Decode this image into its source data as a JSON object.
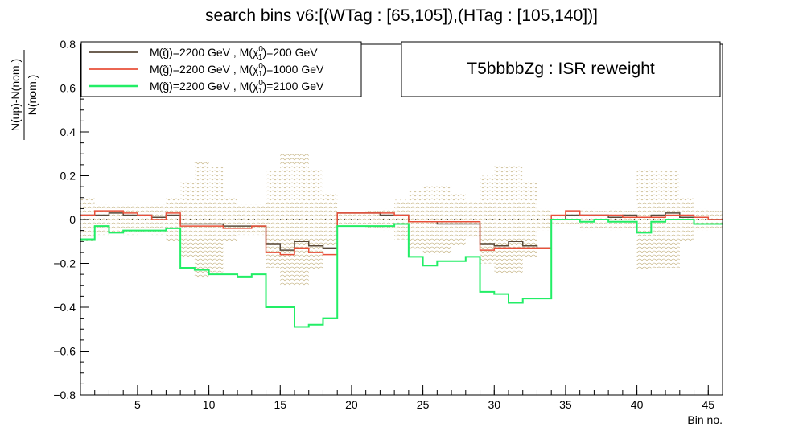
{
  "chart_data": {
    "type": "line",
    "title": "search bins v6:[(WTag : [65,105]),(HTag : [105,140])]",
    "xlabel": "Bin no.",
    "ylabel_num": "N(up)-N(nom.)",
    "ylabel_den": "N(nom.)",
    "xlim": [
      1,
      46
    ],
    "ylim": [
      -0.8,
      0.8
    ],
    "x_ticks": [
      5,
      10,
      15,
      20,
      25,
      30,
      35,
      40,
      45
    ],
    "y_ticks": [
      -0.8,
      -0.6,
      -0.4,
      -0.2,
      0,
      0.2,
      0.4,
      0.6,
      0.8
    ],
    "y_tick_labels": [
      "−0.8",
      "−0.6",
      "−0.4",
      "−0.2",
      "0",
      "0.2",
      "0.4",
      "0.6",
      "0.8"
    ],
    "annotation": "T5bbbbZg : ISR reweight",
    "legend_position": "top-left",
    "series": [
      {
        "name": "M(g̃)=2200 GeV , M(χ₁⁰)=200 GeV",
        "legend_prefix": "M(",
        "legend_mid": "g̃",
        "legend_post": ")=2200 GeV , M(χ",
        "legend_sup": "0",
        "legend_sub": "1",
        "legend_end": ")=200 GeV",
        "color": "#5a4a3a",
        "values": [
          0.02,
          0.02,
          0.03,
          0.02,
          0.02,
          0.01,
          0.02,
          -0.02,
          -0.02,
          -0.02,
          -0.03,
          -0.03,
          -0.03,
          -0.11,
          -0.14,
          -0.1,
          -0.12,
          -0.13,
          0.03,
          0.03,
          0.03,
          0.02,
          0.02,
          -0.01,
          -0.01,
          -0.02,
          -0.02,
          -0.02,
          -0.11,
          -0.12,
          -0.1,
          -0.12,
          -0.13,
          0.0,
          0.02,
          0.02,
          0.02,
          0.01,
          0.02,
          0.01,
          0.02,
          0.03,
          0.01,
          0.01,
          0.0
        ]
      },
      {
        "name": "M(g̃)=2200 GeV , M(χ₁⁰)=1000 GeV",
        "legend_prefix": "M(",
        "legend_mid": "g̃",
        "legend_post": ")=2200 GeV , M(χ",
        "legend_sup": "0",
        "legend_sub": "1",
        "legend_end": ")=1000 GeV",
        "color": "#e8503a",
        "values": [
          0.02,
          0.04,
          0.04,
          0.03,
          0.02,
          0.0,
          0.03,
          -0.03,
          -0.03,
          -0.03,
          -0.04,
          -0.04,
          -0.03,
          -0.15,
          -0.16,
          -0.13,
          -0.15,
          -0.16,
          0.03,
          0.03,
          0.03,
          0.03,
          0.02,
          -0.01,
          -0.01,
          -0.01,
          -0.01,
          -0.01,
          -0.14,
          -0.13,
          -0.13,
          -0.13,
          -0.13,
          0.02,
          0.04,
          0.02,
          0.02,
          0.02,
          0.01,
          0.01,
          0.01,
          0.02,
          0.02,
          0.01,
          0.0
        ]
      },
      {
        "name": "M(g̃)=2200 GeV , M(χ₁⁰)=2100 GeV",
        "legend_prefix": "M(",
        "legend_mid": "g̃",
        "legend_post": ")=2200 GeV , M(χ",
        "legend_sup": "0",
        "legend_sub": "1",
        "legend_end": ")=2100 GeV",
        "color": "#22ee66",
        "values": [
          -0.09,
          -0.03,
          -0.06,
          -0.05,
          -0.05,
          -0.05,
          -0.04,
          -0.22,
          -0.23,
          -0.25,
          -0.25,
          -0.26,
          -0.25,
          -0.4,
          -0.4,
          -0.49,
          -0.48,
          -0.45,
          -0.03,
          -0.03,
          -0.03,
          -0.03,
          -0.02,
          -0.17,
          -0.21,
          -0.19,
          -0.19,
          -0.17,
          -0.33,
          -0.34,
          -0.38,
          -0.36,
          -0.36,
          0.0,
          0.0,
          -0.01,
          0.0,
          -0.01,
          -0.01,
          -0.06,
          -0.01,
          0.0,
          0.0,
          -0.02,
          -0.02
        ]
      }
    ],
    "uncertainty_band": {
      "color": "#c8b88a",
      "values": [
        0.1,
        0.07,
        0.06,
        0.07,
        0.06,
        0.07,
        0.1,
        0.17,
        0.27,
        0.24,
        0.1,
        0.07,
        0.07,
        0.22,
        0.3,
        0.3,
        0.23,
        0.12,
        0.03,
        0.03,
        0.04,
        0.05,
        0.09,
        0.13,
        0.16,
        0.16,
        0.12,
        0.08,
        0.2,
        0.25,
        0.25,
        0.17,
        0.05,
        0.02,
        0.03,
        0.05,
        0.04,
        0.05,
        0.04,
        0.23,
        0.22,
        0.22,
        0.1,
        0.05,
        0.04
      ]
    }
  }
}
